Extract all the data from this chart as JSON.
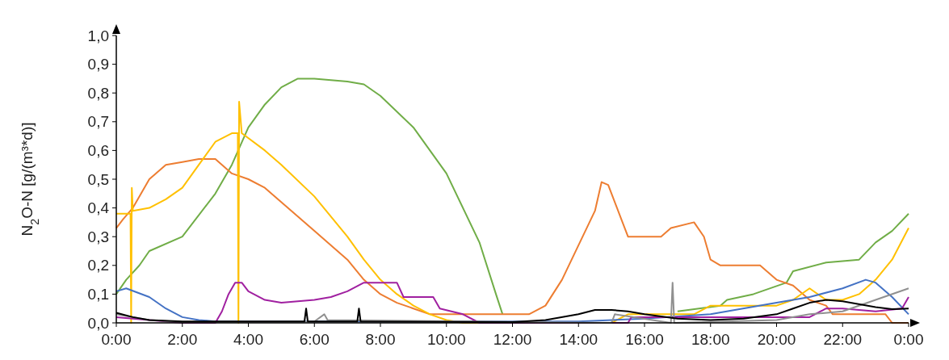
{
  "chart_data": {
    "type": "line",
    "ylabel": "N$_{2}$O-N [g/(m³*d)]",
    "xlim": [
      0,
      24
    ],
    "ylim": [
      0,
      1
    ],
    "xticks": [
      {
        "value": 0,
        "label": "0:00"
      },
      {
        "value": 2,
        "label": "2:00"
      },
      {
        "value": 4,
        "label": "4:00"
      },
      {
        "value": 6,
        "label": "6:00"
      },
      {
        "value": 8,
        "label": "8:00"
      },
      {
        "value": 10,
        "label": "10:00"
      },
      {
        "value": 12,
        "label": "12:00"
      },
      {
        "value": 14,
        "label": "14:00"
      },
      {
        "value": 16,
        "label": "16:00"
      },
      {
        "value": 18,
        "label": "18:00"
      },
      {
        "value": 20,
        "label": "20:00"
      },
      {
        "value": 22,
        "label": "22:00"
      },
      {
        "value": 24,
        "label": "0:00"
      }
    ],
    "yticks": [
      {
        "value": 0,
        "label": "0,0"
      },
      {
        "value": 0.1,
        "label": "0,1"
      },
      {
        "value": 0.2,
        "label": "0,2"
      },
      {
        "value": 0.3,
        "label": "0,3"
      },
      {
        "value": 0.4,
        "label": "0,4"
      },
      {
        "value": 0.5,
        "label": "0,5"
      },
      {
        "value": 0.6,
        "label": "0,6"
      },
      {
        "value": 0.7,
        "label": "0,7"
      },
      {
        "value": 0.8,
        "label": "0,8"
      },
      {
        "value": 0.9,
        "label": "0,9"
      },
      {
        "value": 1,
        "label": "1,0"
      }
    ],
    "grid": false,
    "line_style": "solid",
    "series": [
      {
        "color": "#70ad47",
        "x": [
          0,
          0.3,
          0.7,
          1,
          2,
          3,
          3.5,
          4,
          4.5,
          5,
          5.5,
          6,
          7,
          7.5,
          8,
          9,
          10,
          11,
          11.5,
          11.7,
          12.4,
          12.5,
          17,
          18.3,
          18.5,
          19.3,
          20.3,
          20.5,
          21.5,
          22.5,
          23,
          23.5,
          24
        ],
        "values": [
          0.1,
          0.15,
          0.2,
          0.25,
          0.3,
          0.45,
          0.55,
          0.68,
          0.76,
          0.82,
          0.85,
          0.85,
          0.84,
          0.83,
          0.79,
          0.68,
          0.52,
          0.28,
          0.1,
          0.03,
          null,
          null,
          0.04,
          0.06,
          0.08,
          0.1,
          0.14,
          0.18,
          0.21,
          0.22,
          0.28,
          0.32,
          0.38
        ]
      },
      {
        "color": "#ed7d31",
        "x": [
          0,
          0.2,
          0.5,
          1,
          1.5,
          2,
          2.5,
          3,
          3.5,
          4,
          4.5,
          5,
          6,
          7,
          7.5,
          8,
          8.5,
          9,
          9.5,
          12.5,
          13,
          13.5,
          14,
          14.5,
          14.7,
          14.9,
          15.3,
          15.5,
          16.5,
          16.8,
          17.5,
          17.8,
          18,
          18.3,
          19.5,
          20,
          20.5,
          21,
          21.5,
          21.7,
          23.3,
          23.5,
          24
        ],
        "values": [
          0.33,
          0.36,
          0.4,
          0.5,
          0.55,
          0.56,
          0.57,
          0.57,
          0.52,
          0.5,
          0.47,
          0.42,
          0.32,
          0.22,
          0.15,
          0.1,
          0.07,
          0.05,
          0.03,
          0.03,
          0.06,
          0.15,
          0.27,
          0.39,
          0.49,
          0.48,
          0.36,
          0.3,
          0.3,
          0.33,
          0.35,
          0.3,
          0.22,
          0.2,
          0.2,
          0.15,
          0.13,
          0.08,
          0.06,
          0.03,
          0.03,
          0,
          0
        ]
      },
      {
        "color": "#ffc000",
        "x": [
          0,
          0.43,
          0.45,
          0.47,
          0.5,
          1,
          1.5,
          2,
          2.5,
          3,
          3.5,
          3.68,
          3.7,
          3.72,
          3.8,
          4.5,
          5,
          6,
          7,
          7.5,
          8,
          8.5,
          9,
          9.5,
          10,
          10.5,
          15,
          15.5,
          17.5,
          18,
          20,
          20.5,
          21,
          21.5,
          22,
          22.5,
          23,
          23.5,
          24
        ],
        "values": [
          0.38,
          0.38,
          0,
          0.47,
          0.39,
          0.4,
          0.43,
          0.47,
          0.55,
          0.63,
          0.66,
          0.66,
          0,
          0.77,
          0.66,
          0.6,
          0.55,
          0.44,
          0.3,
          0.22,
          0.15,
          0.1,
          0.06,
          0.03,
          0.01,
          0,
          0,
          0.03,
          0.03,
          0.06,
          0.06,
          0.08,
          0.12,
          0.08,
          0.08,
          0.1,
          0.15,
          0.22,
          0.33
        ]
      },
      {
        "color": "#4472c4",
        "x": [
          0,
          0.3,
          1,
          1.5,
          2,
          2.5,
          3,
          12,
          14,
          16,
          18,
          20,
          21,
          22,
          22.7,
          23,
          23.5,
          24
        ],
        "values": [
          0.11,
          0.12,
          0.09,
          0.05,
          0.02,
          0.01,
          0.005,
          0.005,
          0.005,
          0.015,
          0.03,
          0.07,
          0.09,
          0.12,
          0.15,
          0.14,
          0.09,
          0.03
        ]
      },
      {
        "color": "#a020a0",
        "x": [
          0,
          1,
          2,
          3,
          3.2,
          3.4,
          3.6,
          3.8,
          4,
          4.5,
          5,
          6,
          6.5,
          7,
          7.5,
          8.5,
          8.7,
          9.6,
          9.8,
          10.5,
          11,
          15.5,
          15.6,
          21,
          21.5,
          22,
          23,
          23.8,
          24
        ],
        "values": [
          0.02,
          0.01,
          0,
          0,
          0.04,
          0.1,
          0.14,
          0.14,
          0.11,
          0.08,
          0.07,
          0.08,
          0.09,
          0.11,
          0.14,
          0.14,
          0.09,
          0.09,
          0.05,
          0.03,
          0,
          0,
          0.02,
          0.02,
          0.05,
          0.05,
          0.04,
          0.05,
          0.09
        ]
      },
      {
        "color": "#909090",
        "x": [
          0,
          1,
          2,
          6,
          6.3,
          6.4,
          15,
          15.1,
          16.8,
          16.85,
          16.9,
          20,
          21,
          22,
          23,
          24
        ],
        "values": [
          0.03,
          0.01,
          0.003,
          0.005,
          0.03,
          0.01,
          0,
          0.03,
          0,
          0.14,
          0,
          0.01,
          0.03,
          0.04,
          0.08,
          0.12
        ]
      },
      {
        "color": "#000000",
        "x": [
          0,
          0.5,
          1,
          2,
          5.7,
          5.75,
          5.8,
          7.3,
          7.35,
          7.4,
          12,
          13,
          14,
          14.5,
          15,
          15.5,
          16,
          17,
          18,
          19,
          20,
          20.5,
          21,
          21.5,
          22,
          23,
          23.5,
          24
        ],
        "values": [
          0.035,
          0.02,
          0.01,
          0.005,
          0.005,
          0.05,
          0.005,
          0.005,
          0.05,
          0.005,
          0.003,
          0.01,
          0.03,
          0.045,
          0.045,
          0.04,
          0.03,
          0.015,
          0.01,
          0.015,
          0.03,
          0.05,
          0.07,
          0.08,
          0.075,
          0.055,
          0.048,
          0.05
        ]
      }
    ]
  }
}
